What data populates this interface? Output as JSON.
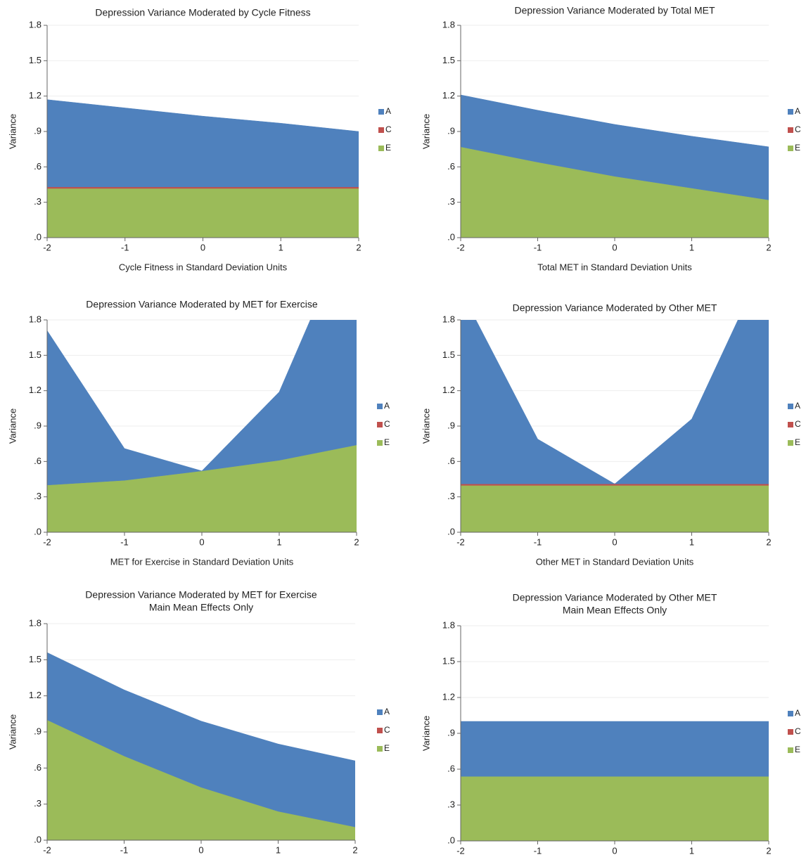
{
  "chart_data": [
    {
      "type": "area",
      "title": "Depression Variance Moderated  by Cycle Fitness",
      "xlabel": "Cycle Fitness in Standard Deviation Units",
      "ylabel": "Variance",
      "x": [
        -2,
        -1,
        0,
        1,
        2
      ],
      "xlim": [
        -2,
        2
      ],
      "xticks": [
        -2,
        -1,
        0,
        1,
        2
      ],
      "ylim": [
        0,
        1.8
      ],
      "yticks": [
        {
          "value": 0,
          "label": ".0"
        },
        {
          "value": 0.3,
          "label": ".3"
        },
        {
          "value": 0.6,
          "label": ".6"
        },
        {
          "value": 0.9,
          "label": ".9"
        },
        1.2,
        1.5,
        1.8
      ],
      "grid": true,
      "legend": "right",
      "series": [
        {
          "name": "A",
          "color": "#4f81bd",
          "values": [
            0.74,
            0.67,
            0.6,
            0.54,
            0.47
          ]
        },
        {
          "name": "C",
          "color": "#c0504d",
          "values": [
            0.01,
            0.01,
            0.01,
            0.01,
            0.01
          ]
        },
        {
          "name": "E",
          "color": "#9bbb59",
          "values": [
            0.42,
            0.42,
            0.42,
            0.42,
            0.42
          ]
        }
      ]
    },
    {
      "type": "area",
      "title": "Depression Variance Moderated  by Total MET",
      "xlabel": "Total MET in Standard Deviation Units",
      "ylabel": "Variance",
      "x": [
        -2,
        -1,
        0,
        1,
        2
      ],
      "xlim": [
        -2,
        2
      ],
      "xticks": [
        -2,
        -1,
        0,
        1,
        2
      ],
      "ylim": [
        0,
        1.8
      ],
      "yticks": [
        {
          "value": 0,
          "label": ".0"
        },
        {
          "value": 0.3,
          "label": ".3"
        },
        {
          "value": 0.6,
          "label": ".6"
        },
        {
          "value": 0.9,
          "label": ".9"
        },
        1.2,
        1.5,
        1.8
      ],
      "grid": true,
      "legend": "right",
      "series": [
        {
          "name": "A",
          "color": "#4f81bd",
          "values": [
            0.44,
            0.44,
            0.44,
            0.44,
            0.45
          ]
        },
        {
          "name": "C",
          "color": "#c0504d",
          "values": [
            0,
            0,
            0,
            0,
            0
          ]
        },
        {
          "name": "E",
          "color": "#9bbb59",
          "values": [
            0.77,
            0.64,
            0.52,
            0.42,
            0.32
          ]
        }
      ]
    },
    {
      "type": "area",
      "title": "Depression Variance Moderated  by MET for Exercise",
      "xlabel": "MET for Exercise in Standard Deviation Units",
      "ylabel": "Variance",
      "x": [
        -2,
        -1,
        0,
        1,
        2
      ],
      "xlim": [
        -2,
        2
      ],
      "xticks": [
        -2,
        -1,
        0,
        1,
        2
      ],
      "ylim": [
        0,
        1.8
      ],
      "yticks": [
        {
          "value": 0,
          "label": ".0"
        },
        {
          "value": 0.3,
          "label": ".3"
        },
        {
          "value": 0.6,
          "label": ".6"
        },
        {
          "value": 0.9,
          "label": ".9"
        },
        1.2,
        1.5,
        1.8
      ],
      "grid": true,
      "legend": "right",
      "series": [
        {
          "name": "A",
          "color": "#4f81bd",
          "values": [
            1.31,
            0.27,
            0,
            0.58,
            1.97
          ]
        },
        {
          "name": "C",
          "color": "#c0504d",
          "values": [
            0,
            0,
            0,
            0,
            0
          ]
        },
        {
          "name": "E",
          "color": "#9bbb59",
          "values": [
            0.4,
            0.44,
            0.52,
            0.61,
            0.74
          ]
        }
      ]
    },
    {
      "type": "area",
      "title": "Depression Variance Moderated  by Other MET",
      "xlabel": "Other MET in Standard Deviation Units",
      "ylabel": "Variance",
      "x": [
        -2,
        -1,
        0,
        1,
        2
      ],
      "xlim": [
        -2,
        2
      ],
      "xticks": [
        -2,
        -1,
        0,
        1,
        2
      ],
      "ylim": [
        0,
        1.8
      ],
      "yticks": [
        {
          "value": 0,
          "label": ".0"
        },
        {
          "value": 0.3,
          "label": ".3"
        },
        {
          "value": 0.6,
          "label": ".6"
        },
        {
          "value": 0.9,
          "label": ".9"
        },
        1.2,
        1.5,
        1.8
      ],
      "grid": true,
      "legend": "right",
      "series": [
        {
          "name": "A",
          "color": "#4f81bd",
          "values": [
            1.64,
            0.38,
            0,
            0.55,
            1.95
          ]
        },
        {
          "name": "C",
          "color": "#c0504d",
          "values": [
            0.01,
            0.01,
            0.01,
            0.01,
            0.01
          ]
        },
        {
          "name": "E",
          "color": "#9bbb59",
          "values": [
            0.4,
            0.4,
            0.4,
            0.4,
            0.4
          ]
        }
      ]
    },
    {
      "type": "area",
      "title": "Depression Variance Moderated  by MET for Exercise",
      "subtitle": "Main Mean Effects Only",
      "xlabel": "MET for Exercise in Standard Deviation Units",
      "ylabel": "Variance",
      "x": [
        -2,
        -1,
        0,
        1,
        2
      ],
      "xlim": [
        -2,
        2
      ],
      "xticks": [
        -2,
        -1,
        0,
        1,
        2
      ],
      "ylim": [
        0,
        1.8
      ],
      "yticks": [
        {
          "value": 0,
          "label": ".0"
        },
        {
          "value": 0.3,
          "label": ".3"
        },
        {
          "value": 0.6,
          "label": ".6"
        },
        {
          "value": 0.9,
          "label": ".9"
        },
        1.2,
        1.5,
        1.8
      ],
      "grid": true,
      "legend": "right",
      "series": [
        {
          "name": "A",
          "color": "#4f81bd",
          "values": [
            0.56,
            0.55,
            0.55,
            0.56,
            0.55
          ]
        },
        {
          "name": "C",
          "color": "#c0504d",
          "values": [
            0,
            0,
            0,
            0,
            0
          ]
        },
        {
          "name": "E",
          "color": "#9bbb59",
          "values": [
            1.0,
            0.7,
            0.44,
            0.24,
            0.11
          ]
        }
      ]
    },
    {
      "type": "area",
      "title": "Depression Variance Moderated  by Other MET",
      "subtitle": "Main Mean Effects Only",
      "xlabel": "Other MET in Standard Deviation Units",
      "ylabel": "Variance",
      "x": [
        -2,
        -1,
        0,
        1,
        2
      ],
      "xlim": [
        -2,
        2
      ],
      "xticks": [
        -2,
        -1,
        0,
        1,
        2
      ],
      "ylim": [
        0,
        1.8
      ],
      "yticks": [
        {
          "value": 0,
          "label": ".0"
        },
        {
          "value": 0.3,
          "label": ".3"
        },
        {
          "value": 0.6,
          "label": ".6"
        },
        {
          "value": 0.9,
          "label": ".9"
        },
        1.2,
        1.5,
        1.8
      ],
      "grid": true,
      "legend": "right",
      "series": [
        {
          "name": "A",
          "color": "#4f81bd",
          "values": [
            0.46,
            0.46,
            0.46,
            0.46,
            0.46
          ]
        },
        {
          "name": "C",
          "color": "#c0504d",
          "values": [
            0,
            0,
            0,
            0,
            0
          ]
        },
        {
          "name": "E",
          "color": "#9bbb59",
          "values": [
            0.54,
            0.54,
            0.54,
            0.54,
            0.54
          ]
        }
      ]
    }
  ]
}
